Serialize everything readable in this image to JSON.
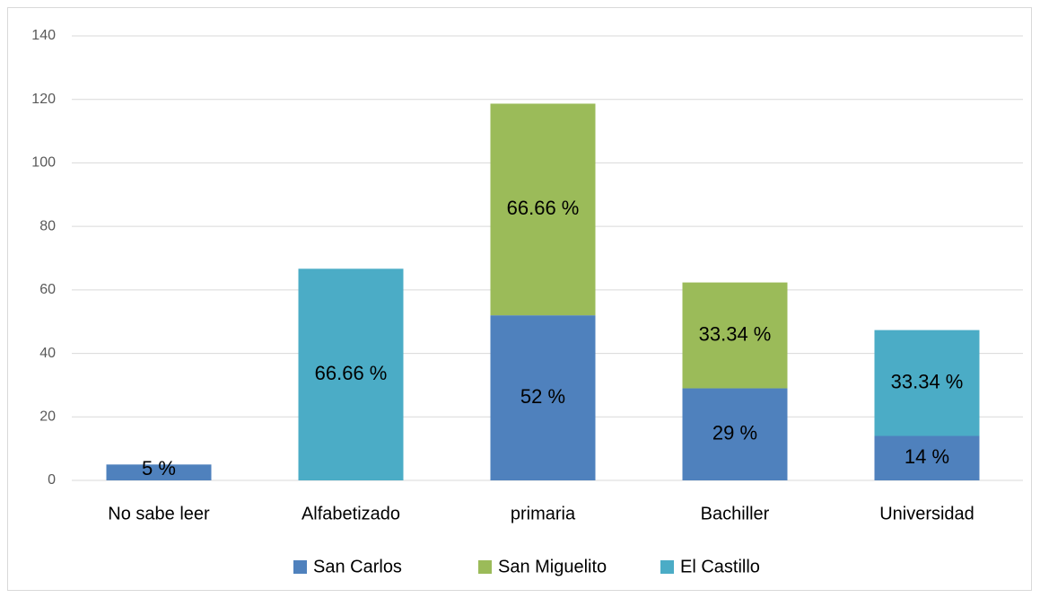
{
  "chart_data": {
    "type": "stacked_bar",
    "categories": [
      "No sabe leer",
      "Alfabetizado",
      "primaria",
      "Bachiller",
      "Universidad"
    ],
    "series": [
      {
        "name": "San Carlos",
        "color": "#4f81bd",
        "values": [
          5,
          null,
          52,
          29,
          14
        ],
        "value_labels": [
          "5 %",
          null,
          "52 %",
          "29 %",
          "14 %"
        ]
      },
      {
        "name": "San Miguelito",
        "color": "#9bbb59",
        "values": [
          null,
          null,
          66.66,
          33.34,
          null
        ],
        "value_labels": [
          null,
          null,
          "66.66 %",
          "33.34 %",
          null
        ]
      },
      {
        "name": "El Castillo",
        "color": "#4bacc6",
        "values": [
          null,
          66.66,
          null,
          null,
          33.34
        ],
        "value_labels": [
          null,
          "66.66 %",
          null,
          null,
          "33.34 %"
        ]
      }
    ],
    "ylim": [
      0,
      140
    ],
    "yticks": [
      0,
      20,
      40,
      60,
      80,
      100,
      120,
      140
    ],
    "grid": true,
    "legend": "bottom"
  }
}
